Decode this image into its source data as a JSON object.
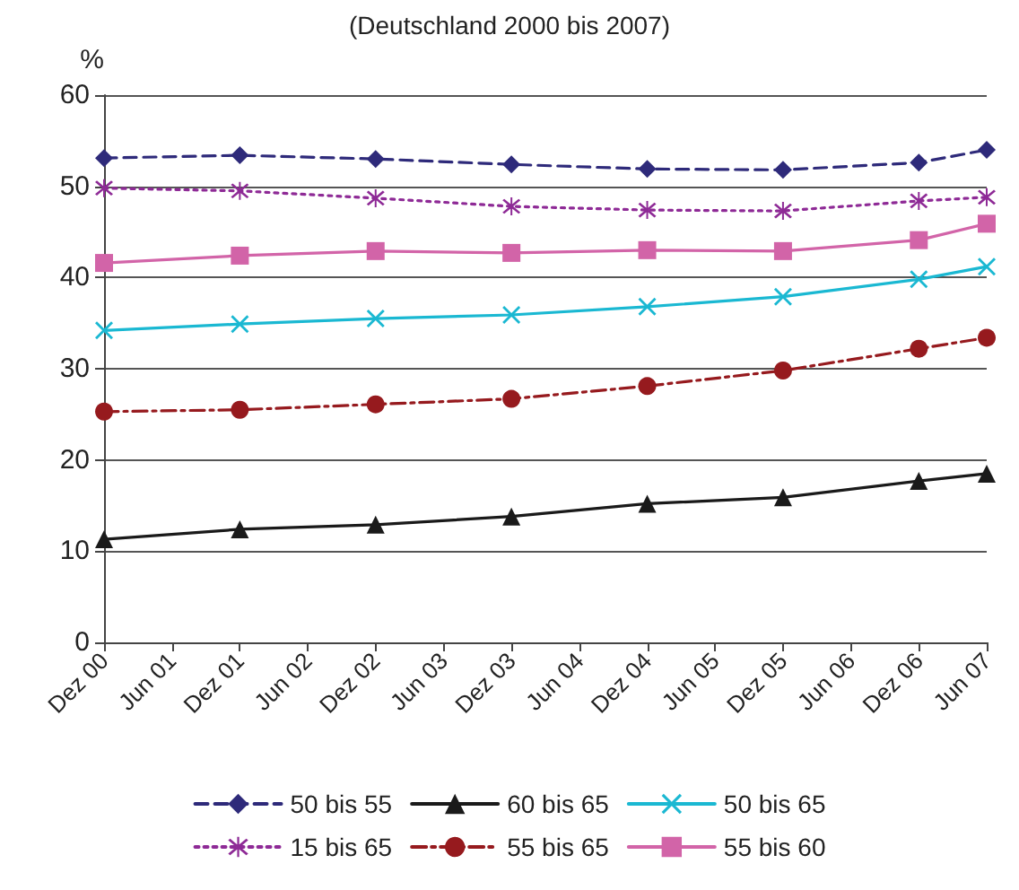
{
  "chart_data": {
    "type": "line",
    "subtitle": "(Deutschland 2000 bis 2007)",
    "ylabel": "%",
    "categories": [
      "Dez 00",
      "Jun 01",
      "Dez 01",
      "Jun 02",
      "Dez 02",
      "Jun 03",
      "Dez 03",
      "Jun 04",
      "Dez 04",
      "Jun 05",
      "Dez 05",
      "Jun 06",
      "Dez 06",
      "Jun 07"
    ],
    "series": [
      {
        "name": "50 bis 55",
        "color": "#2e2a7a",
        "marker": "diamond",
        "line_style": "dashed",
        "values": [
          53.1,
          null,
          53.4,
          null,
          53.0,
          null,
          52.4,
          null,
          51.9,
          null,
          51.8,
          null,
          52.6,
          54.0
        ]
      },
      {
        "name": "60 bis 65",
        "color": "#1a1a1a",
        "marker": "triangle",
        "line_style": "solid",
        "values": [
          11.3,
          null,
          12.4,
          null,
          12.9,
          null,
          13.8,
          null,
          15.2,
          null,
          15.9,
          null,
          17.7,
          18.5
        ]
      },
      {
        "name": "50 bis 65",
        "color": "#1ab8d2",
        "marker": "cross",
        "line_style": "solid",
        "values": [
          34.2,
          null,
          34.9,
          null,
          35.5,
          null,
          35.9,
          null,
          36.8,
          null,
          37.9,
          null,
          39.8,
          41.2
        ]
      },
      {
        "name": "15 bis 65",
        "color": "#8e2a96",
        "marker": "star",
        "line_style": "dotted",
        "values": [
          49.8,
          null,
          49.5,
          null,
          48.7,
          null,
          47.8,
          null,
          47.4,
          null,
          47.3,
          null,
          48.4,
          48.8
        ]
      },
      {
        "name": "55 bis 65",
        "color": "#961a1e",
        "marker": "circle",
        "line_style": "dashdot",
        "values": [
          25.3,
          null,
          25.5,
          null,
          26.1,
          null,
          26.7,
          null,
          28.1,
          null,
          29.8,
          null,
          32.2,
          33.4
        ]
      },
      {
        "name": "55 bis 60",
        "color": "#d264a8",
        "marker": "square",
        "line_style": "solid",
        "values": [
          41.6,
          null,
          42.4,
          null,
          42.9,
          null,
          42.7,
          null,
          43.0,
          null,
          42.9,
          null,
          44.1,
          45.9
        ]
      }
    ],
    "ylim": [
      0,
      60
    ],
    "yticks": [
      0,
      10,
      20,
      30,
      40,
      50,
      60
    ],
    "grid": "y",
    "legend": "bottom"
  }
}
